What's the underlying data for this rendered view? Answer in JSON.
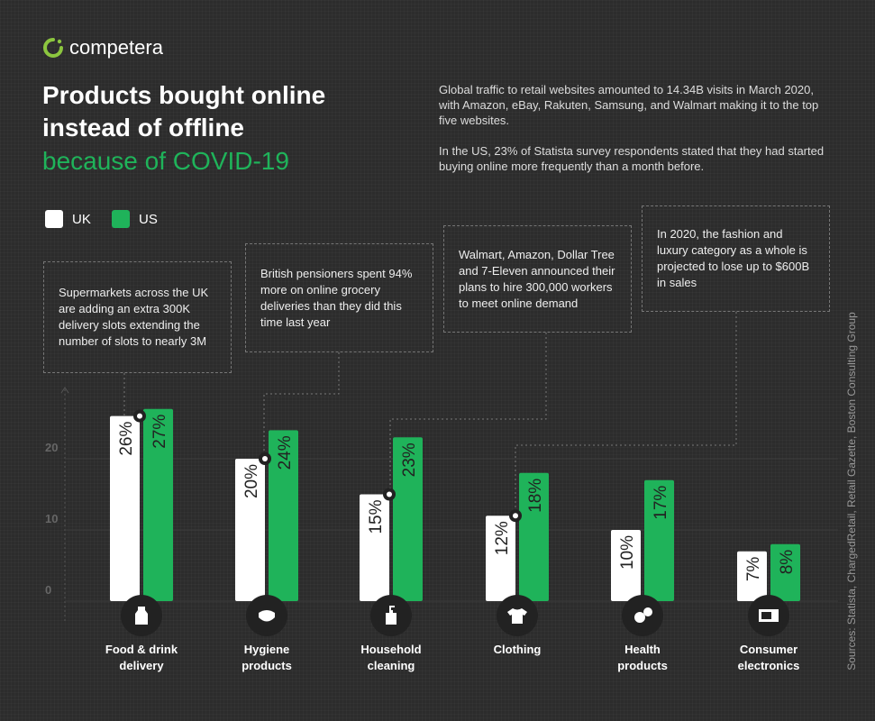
{
  "brand": {
    "name": "competera",
    "accent": "#8cc63f"
  },
  "header": {
    "title_line1": "Products bought online",
    "title_line2": "instead of offline",
    "subtitle": "because of COVID-19"
  },
  "intro": {
    "p1": "Global traffic to retail websites amounted to 14.34B visits in March 2020, with Amazon, eBay, Rakuten, Samsung, and Walmart making it to the top five websites.",
    "p2": "In the US, 23% of Statista survey respondents stated that they had started buying online more frequently than a month before."
  },
  "notes": [
    "Supermarkets across the UK are adding an extra 300K delivery slots extending the number of slots to nearly 3M",
    "British pensioners spent 94% more on online grocery deliveries than they did this time last year",
    "Walmart, Amazon, Dollar Tree and 7-Eleven announced their plans to hire 300,000 workers to meet online demand",
    "In 2020, the fashion and luxury category as a whole is projected to lose up to $600B in sales"
  ],
  "sources": "Sources: Statista, ChargedRetail, Retail Gazette, Boston Consulting Group",
  "chart_data": {
    "type": "bar",
    "categories": [
      "Food & drink delivery",
      "Hygiene products",
      "Household cleaning",
      "Clothing",
      "Health products",
      "Consumer electronics"
    ],
    "category_lines": [
      [
        "Food & drink",
        "delivery"
      ],
      [
        "Hygiene",
        "products"
      ],
      [
        "Household",
        "cleaning"
      ],
      [
        "Clothing",
        ""
      ],
      [
        "Health",
        "products"
      ],
      [
        "Consumer",
        "electronics"
      ]
    ],
    "icons": [
      "milk-bottle-icon",
      "face-mask-icon",
      "spray-bottle-icon",
      "tshirt-icon",
      "pills-icon",
      "microwave-icon"
    ],
    "series": [
      {
        "name": "UK",
        "color": "#ffffff",
        "values": [
          26,
          20,
          15,
          12,
          10,
          7
        ],
        "labels": [
          "26%",
          "20%",
          "15%",
          "12%",
          "10%",
          "7%"
        ]
      },
      {
        "name": "US",
        "color": "#1fb35a",
        "values": [
          27,
          24,
          23,
          18,
          17,
          8
        ],
        "labels": [
          "27%",
          "24%",
          "23%",
          "18%",
          "17%",
          "8%"
        ]
      }
    ],
    "yticks": [
      "0",
      "10",
      "20"
    ],
    "ylim": [
      0,
      30
    ],
    "legend": "top-left"
  }
}
